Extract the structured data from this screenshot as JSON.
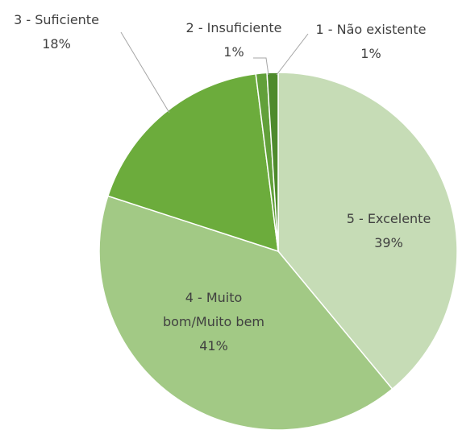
{
  "chart_data": {
    "type": "pie",
    "categories": [
      "5 - Excelente",
      "4 - Muito bom/Muito bem",
      "3 - Suficiente",
      "2 - Insuficiente",
      "1 - Não existente"
    ],
    "values": [
      39,
      41,
      18,
      1,
      1
    ],
    "value_labels": [
      "39%",
      "41%",
      "18%",
      "1%",
      "1%"
    ],
    "colors": [
      "#c6dcb6",
      "#a2c985",
      "#6cac3c",
      "#62a03a",
      "#4e8a2c"
    ]
  }
}
